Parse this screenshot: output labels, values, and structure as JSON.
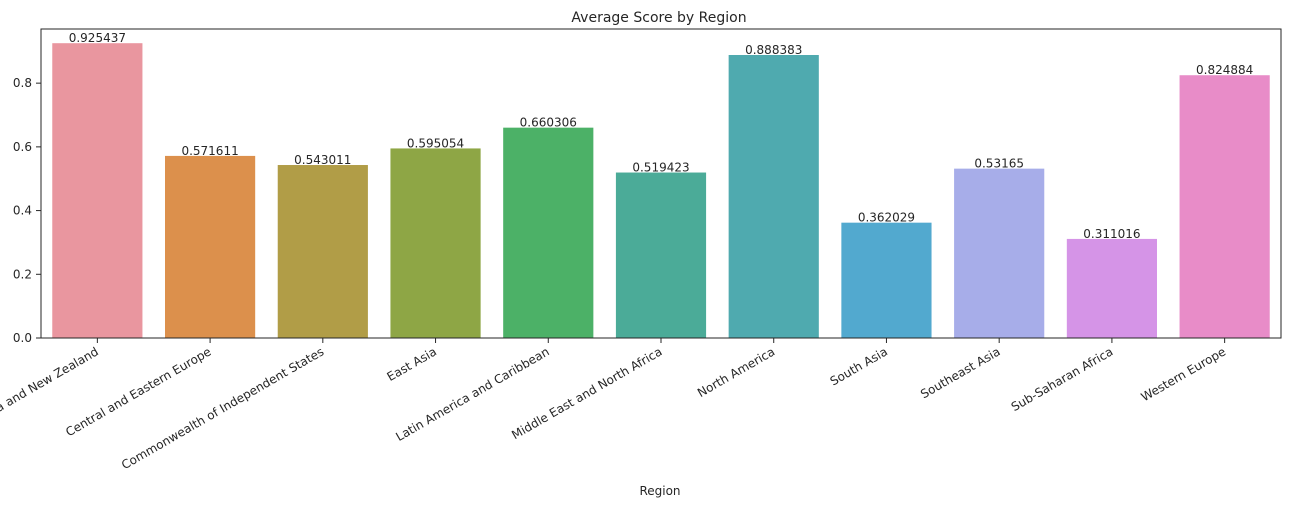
{
  "chart_data": {
    "type": "bar",
    "title": "Average Score by Region",
    "xlabel": "Region",
    "ylabel": "",
    "categories": [
      "Australia and New Zealand",
      "Central and Eastern Europe",
      "Commonwealth of Independent States",
      "East Asia",
      "Latin America and Caribbean",
      "Middle East and North Africa",
      "North America",
      "South Asia",
      "Southeast Asia",
      "Sub-Saharan Africa",
      "Western Europe"
    ],
    "values": [
      0.925437,
      0.571611,
      0.543011,
      0.595054,
      0.660306,
      0.519423,
      0.888383,
      0.362029,
      0.53165,
      0.311016,
      0.824884
    ],
    "data_labels": [
      "0.925437",
      "0.571611",
      "0.543011",
      "0.595054",
      "0.660306",
      "0.519423",
      "0.888383",
      "0.362029",
      "0.53165",
      "0.311016",
      "0.824884"
    ],
    "colors": [
      "#e9969f",
      "#dc904c",
      "#b19d47",
      "#8ea645",
      "#4cb167",
      "#4bab98",
      "#4faaaf",
      "#52a9cf",
      "#a7ade9",
      "#d594e7",
      "#e88cc8"
    ],
    "ylim": [
      0,
      0.97
    ],
    "yticks": [
      0.0,
      0.2,
      0.4,
      0.6,
      0.8
    ],
    "ytick_labels": [
      "0.0",
      "0.2",
      "0.4",
      "0.6",
      "0.8"
    ],
    "grid": false,
    "legend": "none"
  }
}
